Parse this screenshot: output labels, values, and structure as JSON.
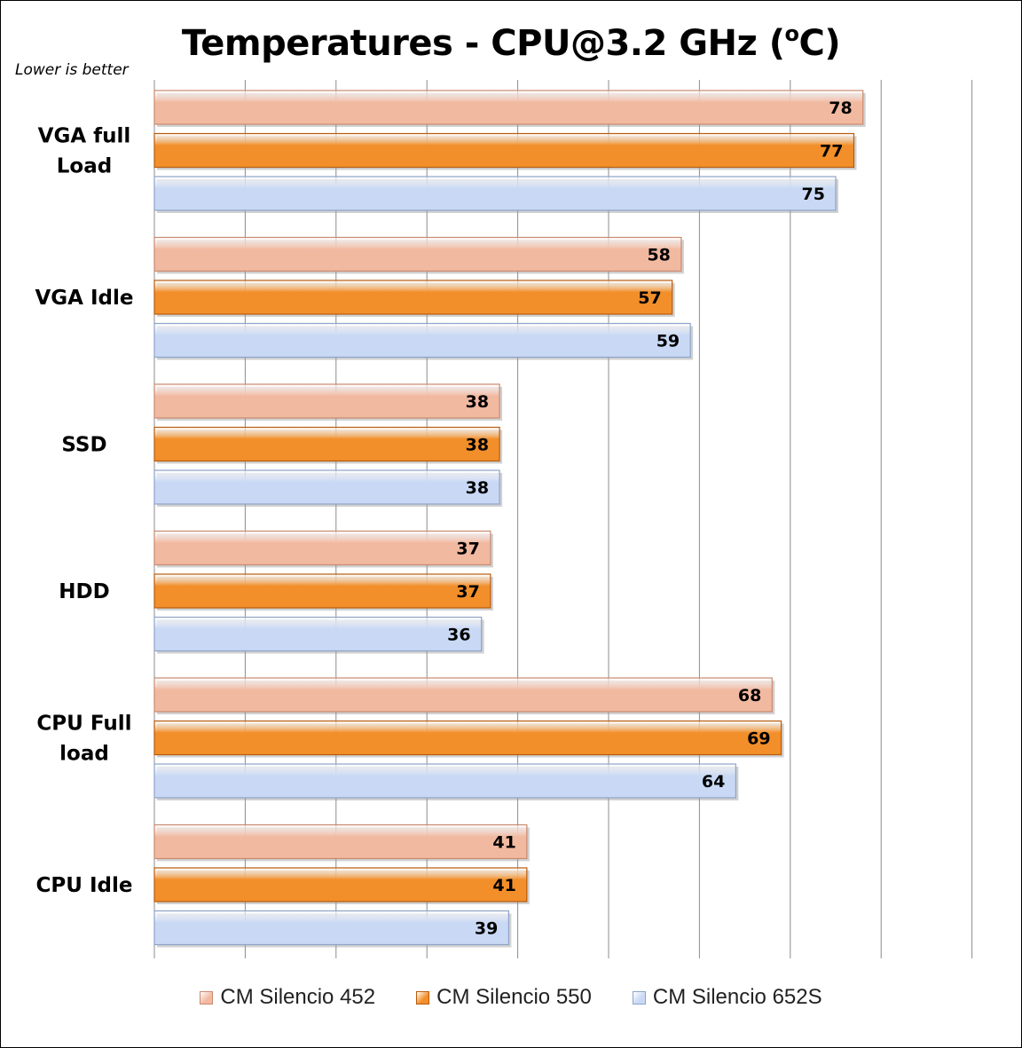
{
  "chart_data": {
    "type": "bar",
    "orientation": "horizontal",
    "title": "Temperatures - CPU@3.2 GHz (oC)",
    "title_main": "Temperatures - CPU@3.2 GHz (",
    "title_sup": "o",
    "title_end": "C)",
    "subtitle": "Lower is better",
    "categories": [
      "VGA full Load",
      "VGA Idle",
      "SSD",
      "HDD",
      "CPU Full load",
      "CPU Idle"
    ],
    "category_lines": [
      [
        "VGA full",
        "Load"
      ],
      [
        "VGA Idle"
      ],
      [
        "SSD"
      ],
      [
        "HDD"
      ],
      [
        "CPU Full",
        "load"
      ],
      [
        "CPU Idle"
      ]
    ],
    "series": [
      {
        "name": "CM Silencio 452",
        "color": "#f2b9a1",
        "edge": "#c98a70",
        "values": [
          78,
          58,
          38,
          37,
          68,
          41
        ]
      },
      {
        "name": "CM Silencio 550",
        "color": "#f28f2a",
        "edge": "#b85c0e",
        "values": [
          77,
          57,
          38,
          37,
          69,
          41
        ]
      },
      {
        "name": "CM Silencio 652S",
        "color": "#c9d9f5",
        "edge": "#8ea3c8",
        "values": [
          75,
          59,
          38,
          36,
          64,
          39
        ]
      }
    ],
    "xlim": [
      0,
      90
    ],
    "x_gridlines": true,
    "legend_position": "bottom"
  }
}
